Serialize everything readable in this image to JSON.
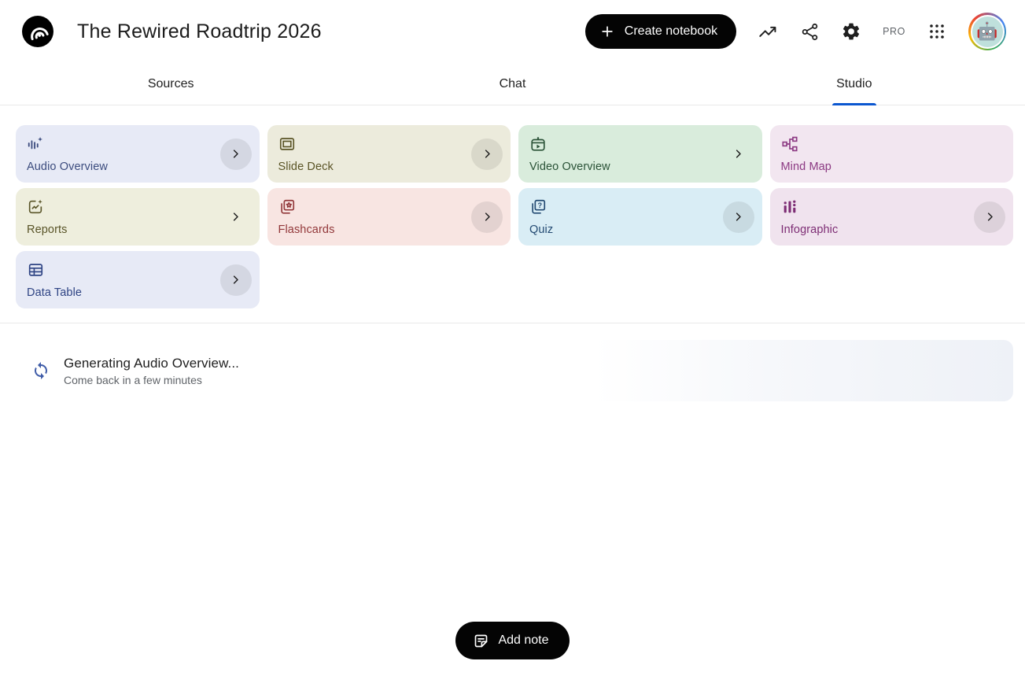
{
  "header": {
    "title": "The Rewired Roadtrip 2026",
    "create_button_label": "Create notebook",
    "pro_label": "PRO",
    "icons": [
      "notebooklm-logo",
      "plus-icon",
      "trending-up-icon",
      "share-icon",
      "settings-gear-icon",
      "apps-grid-icon",
      "avatar-robot"
    ]
  },
  "tabs": [
    {
      "label": "Sources"
    },
    {
      "label": "Chat"
    },
    {
      "label": "Studio"
    }
  ],
  "active_tab": "Studio",
  "studio_cards": [
    {
      "label": "Audio Overview",
      "icon": "audio-waveform-sparkle-icon",
      "bg": "#e7eaf6",
      "fg": "#3c4c7e",
      "chevron": "circled"
    },
    {
      "label": "Slide Deck",
      "icon": "slide-deck-icon",
      "bg": "#ecebdc",
      "fg": "#5a5426",
      "chevron": "circled"
    },
    {
      "label": "Video Overview",
      "icon": "video-frame-icon",
      "bg": "#d9ecdc",
      "fg": "#2a5237",
      "chevron": "plain"
    },
    {
      "label": "Mind Map",
      "icon": "mind-map-icon",
      "bg": "#f2e6f0",
      "fg": "#8c3a83",
      "chevron": "none"
    },
    {
      "label": "Reports",
      "icon": "report-sparkle-icon",
      "bg": "#eeeedd",
      "fg": "#595428",
      "chevron": "plain"
    },
    {
      "label": "Flashcards",
      "icon": "flashcards-star-icon",
      "bg": "#f8e5e2",
      "fg": "#92383a",
      "chevron": "circled"
    },
    {
      "label": "Quiz",
      "icon": "quiz-cards-icon",
      "bg": "#d9edf5",
      "fg": "#234a72",
      "chevron": "circled"
    },
    {
      "label": "Infographic",
      "icon": "bar-chart-dots-icon",
      "bg": "#f0e3ee",
      "fg": "#7d2d74",
      "chevron": "circled"
    },
    {
      "label": "Data Table",
      "icon": "data-table-icon",
      "bg": "#e7eaf6",
      "fg": "#2f4484",
      "chevron": "circled"
    }
  ],
  "generating": {
    "title": "Generating Audio Overview...",
    "subtitle": "Come back in a few minutes",
    "spinner_icon": "sync-arrows-icon",
    "spinner_color": "#3f5ca8"
  },
  "add_note_label": "Add note",
  "colors": {
    "accent_blue": "#0b57d0",
    "pill_black": "#040404",
    "divider": "#e9e9e9",
    "subtitle_gray": "#5f6368",
    "skeleton_tint": "#eef1f7"
  }
}
